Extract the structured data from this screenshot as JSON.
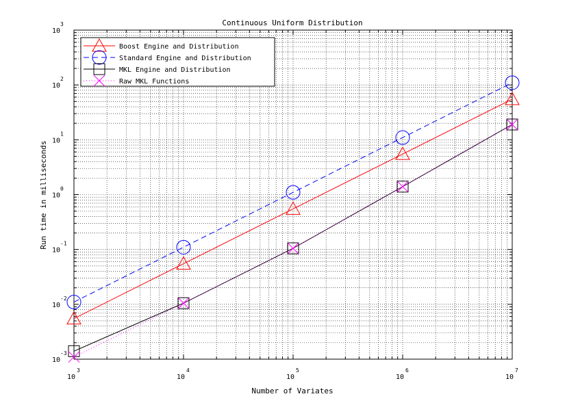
{
  "chart_data": {
    "type": "line",
    "title": "Continuous Uniform Distribution",
    "xlabel": "Number of Variates",
    "ylabel": "Run time in milliseconds",
    "xscale": "log",
    "yscale": "log",
    "xlim": [
      1000,
      10000000
    ],
    "ylim": [
      0.001,
      1000
    ],
    "grid": true,
    "legend_position": "top-left",
    "x": [
      1000,
      10000,
      100000,
      1000000,
      10000000
    ],
    "x_tick_labels": [
      {
        "base": "10",
        "exp": "3"
      },
      {
        "base": "10",
        "exp": "4"
      },
      {
        "base": "10",
        "exp": "5"
      },
      {
        "base": "10",
        "exp": "6"
      },
      {
        "base": "10",
        "exp": "7"
      }
    ],
    "y_tick_labels": [
      {
        "base": "10",
        "exp": "-3"
      },
      {
        "base": "10",
        "exp": "-2"
      },
      {
        "base": "10",
        "exp": "-1"
      },
      {
        "base": "10",
        "exp": "0"
      },
      {
        "base": "10",
        "exp": "1"
      },
      {
        "base": "10",
        "exp": "2"
      },
      {
        "base": "10",
        "exp": "3"
      }
    ],
    "series": [
      {
        "name": "Boost Engine and Distribution",
        "color": "#ff0000",
        "dash": "solid",
        "marker": "triangle",
        "values": [
          0.0055,
          0.055,
          0.55,
          5.5,
          55
        ]
      },
      {
        "name": "Standard Engine and Distribution",
        "color": "#0000ff",
        "dash": "dashed",
        "marker": "circle",
        "values": [
          0.011,
          0.11,
          1.1,
          11,
          110
        ]
      },
      {
        "name": "MKL Engine and Distribution",
        "color": "#000000",
        "dash": "solid",
        "marker": "square",
        "values": [
          0.0014,
          0.0105,
          0.105,
          1.4,
          19
        ]
      },
      {
        "name": "Raw MKL Functions",
        "color": "#ff00ff",
        "dash": "dotted",
        "marker": "x",
        "values": [
          0.0011,
          0.0105,
          0.105,
          1.4,
          19
        ]
      }
    ]
  }
}
